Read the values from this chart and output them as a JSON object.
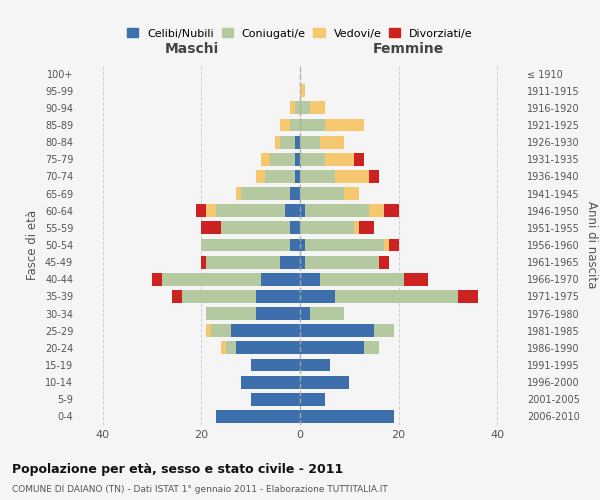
{
  "age_groups": [
    "0-4",
    "5-9",
    "10-14",
    "15-19",
    "20-24",
    "25-29",
    "30-34",
    "35-39",
    "40-44",
    "45-49",
    "50-54",
    "55-59",
    "60-64",
    "65-69",
    "70-74",
    "75-79",
    "80-84",
    "85-89",
    "90-94",
    "95-99",
    "100+"
  ],
  "birth_years": [
    "2006-2010",
    "2001-2005",
    "1996-2000",
    "1991-1995",
    "1986-1990",
    "1981-1985",
    "1976-1980",
    "1971-1975",
    "1966-1970",
    "1961-1965",
    "1956-1960",
    "1951-1955",
    "1946-1950",
    "1941-1945",
    "1936-1940",
    "1931-1935",
    "1926-1930",
    "1921-1925",
    "1916-1920",
    "1911-1915",
    "≤ 1910"
  ],
  "male": {
    "celibi": [
      17,
      10,
      12,
      10,
      13,
      14,
      9,
      9,
      8,
      4,
      2,
      2,
      3,
      2,
      1,
      1,
      1,
      0,
      0,
      0,
      0
    ],
    "coniugati": [
      0,
      0,
      0,
      0,
      2,
      4,
      10,
      15,
      20,
      15,
      18,
      14,
      14,
      10,
      6,
      5,
      3,
      2,
      1,
      0,
      0
    ],
    "vedovi": [
      0,
      0,
      0,
      0,
      1,
      1,
      0,
      0,
      0,
      0,
      0,
      0,
      2,
      1,
      2,
      2,
      1,
      2,
      1,
      0,
      0
    ],
    "divorziati": [
      0,
      0,
      0,
      0,
      0,
      0,
      0,
      2,
      2,
      1,
      0,
      4,
      2,
      0,
      0,
      0,
      0,
      0,
      0,
      0,
      0
    ]
  },
  "female": {
    "nubili": [
      19,
      5,
      10,
      6,
      13,
      15,
      2,
      7,
      4,
      1,
      1,
      0,
      1,
      0,
      0,
      0,
      0,
      0,
      0,
      0,
      0
    ],
    "coniugate": [
      0,
      0,
      0,
      0,
      3,
      4,
      7,
      25,
      17,
      15,
      16,
      11,
      13,
      9,
      7,
      5,
      4,
      5,
      2,
      0,
      0
    ],
    "vedove": [
      0,
      0,
      0,
      0,
      0,
      0,
      0,
      0,
      0,
      0,
      1,
      1,
      3,
      3,
      7,
      6,
      5,
      8,
      3,
      1,
      0
    ],
    "divorziate": [
      0,
      0,
      0,
      0,
      0,
      0,
      0,
      4,
      5,
      2,
      2,
      3,
      3,
      0,
      2,
      2,
      0,
      0,
      0,
      0,
      0
    ]
  },
  "colors": {
    "celibi": "#3c6fac",
    "coniugati": "#b5c9a0",
    "vedovi": "#f5c76e",
    "divorziati": "#cc2222"
  },
  "title": "Popolazione per età, sesso e stato civile - 2011",
  "subtitle": "COMUNE DI DAIANO (TN) - Dati ISTAT 1° gennaio 2011 - Elaborazione TUTTITALIA.IT",
  "xlabel_left": "Maschi",
  "xlabel_right": "Femmine",
  "ylabel_left": "Fasce di età",
  "ylabel_right": "Anni di nascita",
  "xlim": 45,
  "background_color": "#f5f5f5",
  "grid_color": "#cccccc"
}
